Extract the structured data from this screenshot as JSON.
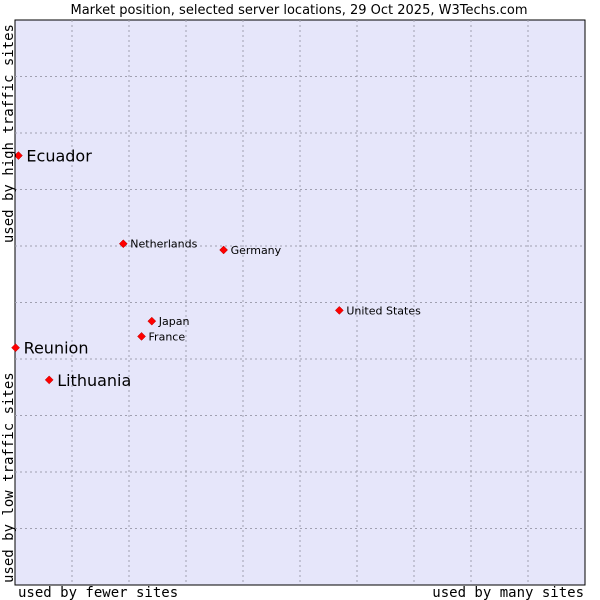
{
  "chart_data": {
    "type": "scatter",
    "title": "Market position, selected server locations, 29 Oct 2025, W3Techs.com",
    "xlabel_left": "used by fewer sites",
    "xlabel_right": "used by many sites",
    "ylabel_bottom": "used by low traffic sites",
    "ylabel_top": "used by high traffic sites",
    "xlim": [
      0,
      100
    ],
    "ylim": [
      0,
      100
    ],
    "grid": true,
    "colors": {
      "plot_bg": "#e6e6fa",
      "point": "#ff0000",
      "grid": "#a0a0b0"
    },
    "points": [
      {
        "label": "Ecuador",
        "x": 0.6,
        "y": 76.0,
        "highlight": true
      },
      {
        "label": "Reunion",
        "x": 0.1,
        "y": 42.0,
        "highlight": true
      },
      {
        "label": "Lithuania",
        "x": 6.0,
        "y": 36.3,
        "highlight": true
      },
      {
        "label": "Netherlands",
        "x": 19.0,
        "y": 60.4,
        "highlight": false
      },
      {
        "label": "Germany",
        "x": 36.6,
        "y": 59.3,
        "highlight": false
      },
      {
        "label": "United States",
        "x": 56.9,
        "y": 48.6,
        "highlight": false
      },
      {
        "label": "Japan",
        "x": 24.0,
        "y": 46.7,
        "highlight": false
      },
      {
        "label": "France",
        "x": 22.2,
        "y": 44.0,
        "highlight": false
      }
    ]
  }
}
